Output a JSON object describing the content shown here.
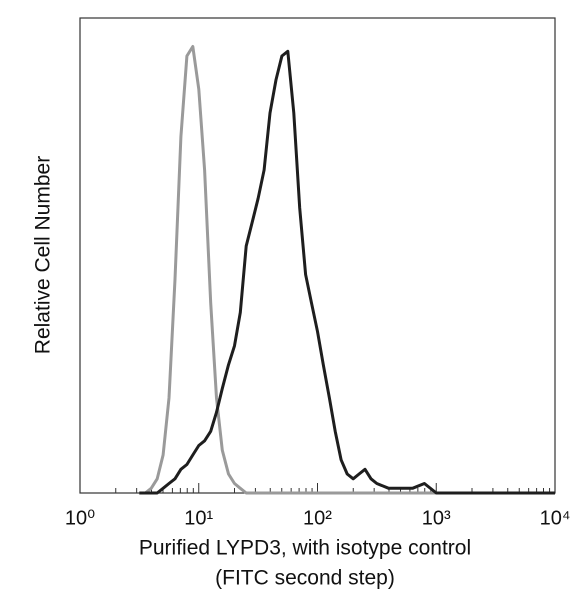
{
  "chart_data": {
    "type": "line",
    "ylabel": "Relative Cell Number",
    "xlabel_lines": [
      "Purified LYPD3, with isotype control",
      "(FITC second step)"
    ],
    "xlog": true,
    "xlim": [
      1,
      10000
    ],
    "xticks": [
      {
        "value": 1,
        "label": "10⁰"
      },
      {
        "value": 10,
        "label": "10¹"
      },
      {
        "value": 100,
        "label": "10²"
      },
      {
        "value": 1000,
        "label": "10³"
      },
      {
        "value": 10000,
        "label": "10⁴"
      }
    ],
    "ylim": [
      0,
      100
    ],
    "x": [
      3.16,
      3.55,
      3.98,
      4.47,
      5.01,
      5.62,
      6.31,
      7.08,
      7.94,
      8.91,
      10,
      11.2,
      12.6,
      14.1,
      15.8,
      17.8,
      20,
      22.4,
      25.1,
      28.2,
      31.6,
      35.5,
      39.8,
      44.7,
      50.1,
      56.2,
      63.1,
      70.8,
      79.4,
      89.1,
      100,
      112,
      126,
      141,
      158,
      178,
      200,
      224,
      251,
      282,
      316,
      398,
      631,
      794,
      1000,
      3162,
      10000
    ],
    "series": [
      {
        "color": "#9a9a9a",
        "values": [
          0,
          0,
          1,
          3,
          8,
          20,
          45,
          75,
          92,
          94,
          85,
          68,
          40,
          20,
          9,
          4,
          2,
          1,
          0,
          0,
          0,
          0,
          0,
          0,
          0,
          0,
          0,
          0,
          0,
          0,
          0,
          0,
          0,
          0,
          0,
          0,
          0,
          0,
          0,
          0,
          0,
          0,
          0,
          0,
          0,
          0,
          0
        ]
      },
      {
        "color": "#1e1e1e",
        "values": [
          0,
          0,
          0,
          0,
          1,
          2,
          3,
          5,
          6,
          8,
          10,
          11,
          13,
          17,
          22,
          27,
          31,
          38,
          52,
          57,
          62,
          68,
          80,
          87,
          92,
          93,
          80,
          60,
          46,
          40,
          34,
          27,
          20,
          13,
          7,
          4,
          3,
          4,
          5,
          3,
          2,
          1,
          1,
          2,
          0,
          0,
          0
        ]
      }
    ]
  }
}
